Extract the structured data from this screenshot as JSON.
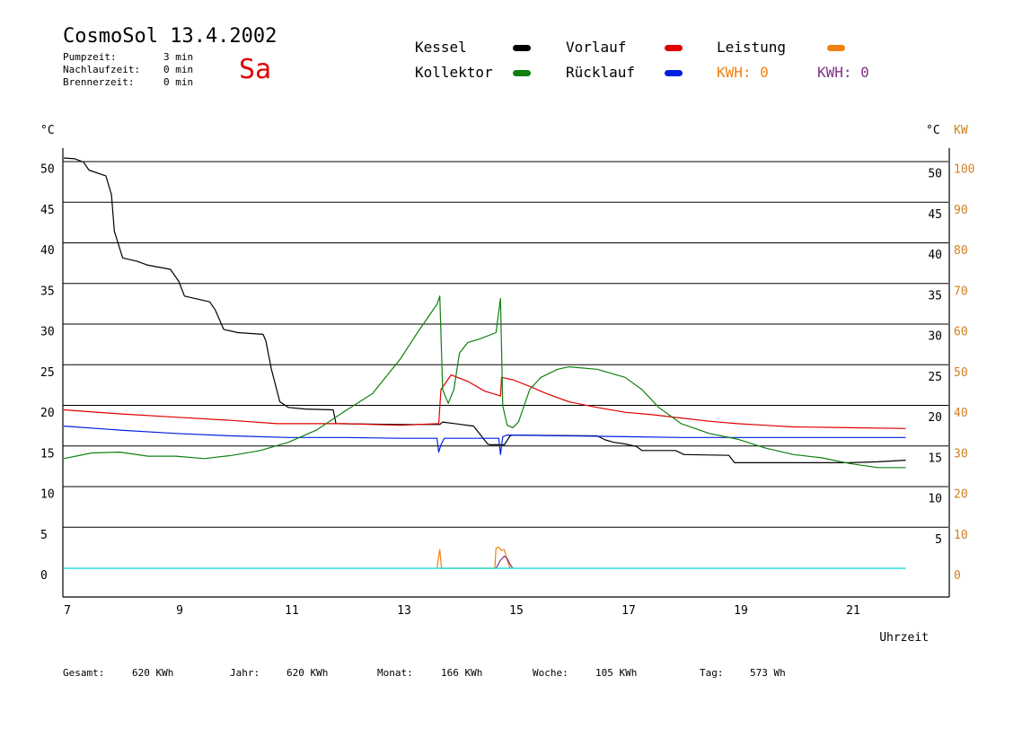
{
  "header": {
    "title": "CosmoSol 13.4.2002",
    "day": "Sa",
    "stats": [
      {
        "label": "Pumpzeit:",
        "value": "3 min"
      },
      {
        "label": "Nachlaufzeit:",
        "value": "0 min"
      },
      {
        "label": "Brennerzeit:",
        "value": "0 min"
      }
    ]
  },
  "legend": {
    "kessel": {
      "label": "Kessel",
      "color": "#000000"
    },
    "vorlauf": {
      "label": "Vorlauf",
      "color": "#e00000"
    },
    "leistung": {
      "label": "Leistung",
      "color": "#f08010"
    },
    "kollektor": {
      "label": "Kollektor",
      "color": "#108010"
    },
    "ruecklauf": {
      "label": "Rücklauf",
      "color": "#0020e0"
    },
    "kwh1": {
      "label": "KWH: 0",
      "color": "#f08010"
    },
    "kwh2": {
      "label": "KWH: 0",
      "color": "#803080"
    }
  },
  "footer": [
    {
      "label": "Gesamt:",
      "value": "620 KWh"
    },
    {
      "label": "Jahr:",
      "value": "620 KWh"
    },
    {
      "label": "Monat:",
      "value": "166 KWh"
    },
    {
      "label": "Woche:",
      "value": "105 KWh"
    },
    {
      "label": "Tag:",
      "value": "573 Wh"
    }
  ],
  "chart_data": {
    "type": "line",
    "xlabel": "Uhrzeit",
    "ylabel_left": "°C",
    "ylabel_right": [
      "°C",
      "KW"
    ],
    "xlim": [
      7,
      22.3
    ],
    "ylim": [
      -2,
      50
    ],
    "x_ticks": [
      "7",
      "9",
      "11",
      "13",
      "15",
      "17",
      "19",
      "21"
    ],
    "y_ticks_left": [
      "50",
      "45",
      "40",
      "35",
      "30",
      "25",
      "20",
      "15",
      "10",
      "5",
      "0"
    ],
    "y_ticks_right_c": [
      "50",
      "45",
      "40",
      "35",
      "30",
      "25",
      "20",
      "15",
      "10",
      "5"
    ],
    "y_ticks_right_kw": [
      "100",
      "90",
      "80",
      "70",
      "60",
      "50",
      "40",
      "30",
      "20",
      "10",
      "0"
    ],
    "grid": true,
    "series": [
      {
        "name": "Kessel",
        "color": "#000000",
        "x": [
          7.0,
          7.2,
          7.35,
          7.45,
          7.75,
          7.85,
          7.9,
          8.05,
          8.3,
          8.5,
          8.9,
          9.05,
          9.15,
          9.6,
          9.7,
          9.85,
          10.1,
          10.55,
          10.6,
          10.7,
          10.85,
          11.0,
          11.3,
          11.8,
          11.85,
          13.0,
          13.7,
          13.75,
          14.3,
          14.45,
          14.55,
          14.6,
          14.85,
          14.95,
          15.0,
          16.5,
          16.65,
          16.8,
          17.0,
          17.2,
          17.3,
          17.9,
          18.05,
          18.85,
          18.95,
          21.0,
          21.5,
          22.0
        ],
        "y": [
          50.5,
          50.4,
          50.0,
          49.0,
          48.3,
          46.0,
          41.5,
          38.2,
          37.8,
          37.3,
          36.8,
          35.3,
          33.5,
          32.8,
          31.8,
          29.4,
          29.0,
          28.8,
          28.0,
          24.5,
          20.5,
          19.8,
          19.6,
          19.5,
          17.8,
          17.7,
          17.7,
          18.0,
          17.5,
          16.2,
          15.3,
          15.2,
          15.2,
          16.3,
          16.4,
          16.3,
          15.8,
          15.5,
          15.3,
          15.0,
          14.5,
          14.5,
          14.0,
          13.9,
          13.0,
          13.0,
          13.1,
          13.3
        ]
      },
      {
        "name": "Vorlauf",
        "color": "#e00000",
        "x": [
          7.0,
          8.0,
          9.0,
          10.0,
          10.8,
          12.0,
          13.0,
          13.68,
          13.72,
          13.9,
          14.2,
          14.5,
          14.78,
          14.8,
          15.0,
          15.3,
          15.6,
          16.0,
          16.5,
          17.0,
          17.5,
          18.0,
          18.5,
          19.0,
          19.5,
          20.0,
          21.0,
          22.0
        ],
        "y": [
          19.5,
          19.0,
          18.6,
          18.2,
          17.8,
          17.8,
          17.6,
          17.8,
          22.0,
          23.8,
          23.0,
          21.8,
          21.2,
          23.5,
          23.2,
          22.4,
          21.5,
          20.5,
          19.8,
          19.2,
          18.9,
          18.5,
          18.1,
          17.8,
          17.6,
          17.4,
          17.3,
          17.2
        ]
      },
      {
        "name": "Rücklauf",
        "color": "#0020e0",
        "x": [
          7.0,
          8.0,
          9.0,
          10.0,
          11.0,
          12.0,
          13.0,
          13.65,
          13.68,
          13.72,
          13.78,
          14.0,
          14.5,
          14.75,
          14.78,
          14.82,
          14.9,
          15.0,
          16.0,
          17.0,
          18.0,
          19.0,
          20.0,
          21.0,
          22.0
        ],
        "y": [
          17.5,
          17.0,
          16.6,
          16.3,
          16.1,
          16.1,
          16.0,
          16.0,
          14.3,
          15.2,
          16.0,
          16.0,
          16.0,
          16.0,
          14.0,
          16.2,
          16.4,
          16.4,
          16.3,
          16.2,
          16.1,
          16.1,
          16.1,
          16.1,
          16.1
        ]
      },
      {
        "name": "Kollektor",
        "color": "#108010",
        "x": [
          7.0,
          7.5,
          8.0,
          8.5,
          9.0,
          9.5,
          10.0,
          10.5,
          11.0,
          11.5,
          12.0,
          12.5,
          13.0,
          13.3,
          13.5,
          13.65,
          13.7,
          13.75,
          13.85,
          13.95,
          14.05,
          14.2,
          14.4,
          14.7,
          14.78,
          14.82,
          14.9,
          15.0,
          15.1,
          15.3,
          15.5,
          15.8,
          16.0,
          16.5,
          17.0,
          17.3,
          17.6,
          18.0,
          18.5,
          19.0,
          19.5,
          20.0,
          20.5,
          21.0,
          21.5,
          22.0
        ],
        "y": [
          13.5,
          14.2,
          14.3,
          13.8,
          13.8,
          13.5,
          13.9,
          14.5,
          15.5,
          17.0,
          19.3,
          21.5,
          25.8,
          29.0,
          31.0,
          32.5,
          33.5,
          22.0,
          20.3,
          22.0,
          26.5,
          27.8,
          28.2,
          29.0,
          33.2,
          20.0,
          17.6,
          17.3,
          18.0,
          22.0,
          23.5,
          24.5,
          24.8,
          24.5,
          23.5,
          22.0,
          19.8,
          17.8,
          16.6,
          15.9,
          14.8,
          14.0,
          13.6,
          12.9,
          12.4,
          12.4
        ]
      },
      {
        "name": "Leistung",
        "color": "#f08010",
        "x": [
          13.65,
          13.68,
          13.7,
          13.73,
          14.68,
          14.7,
          14.75,
          14.8,
          14.85,
          14.9,
          14.95
        ],
        "y": [
          0,
          1.5,
          2.3,
          0,
          0,
          2.5,
          2.6,
          2.2,
          2.3,
          1.0,
          0
        ]
      },
      {
        "name": "",
        "color": "#803080",
        "x": [
          14.7,
          14.78,
          14.85,
          14.9,
          14.95,
          15.0
        ],
        "y": [
          0,
          1.0,
          1.5,
          1.2,
          0.5,
          0
        ]
      },
      {
        "name": "",
        "color": "#00d8d8",
        "x": [
          7.0,
          22.0
        ],
        "y": [
          0,
          0
        ]
      }
    ]
  }
}
